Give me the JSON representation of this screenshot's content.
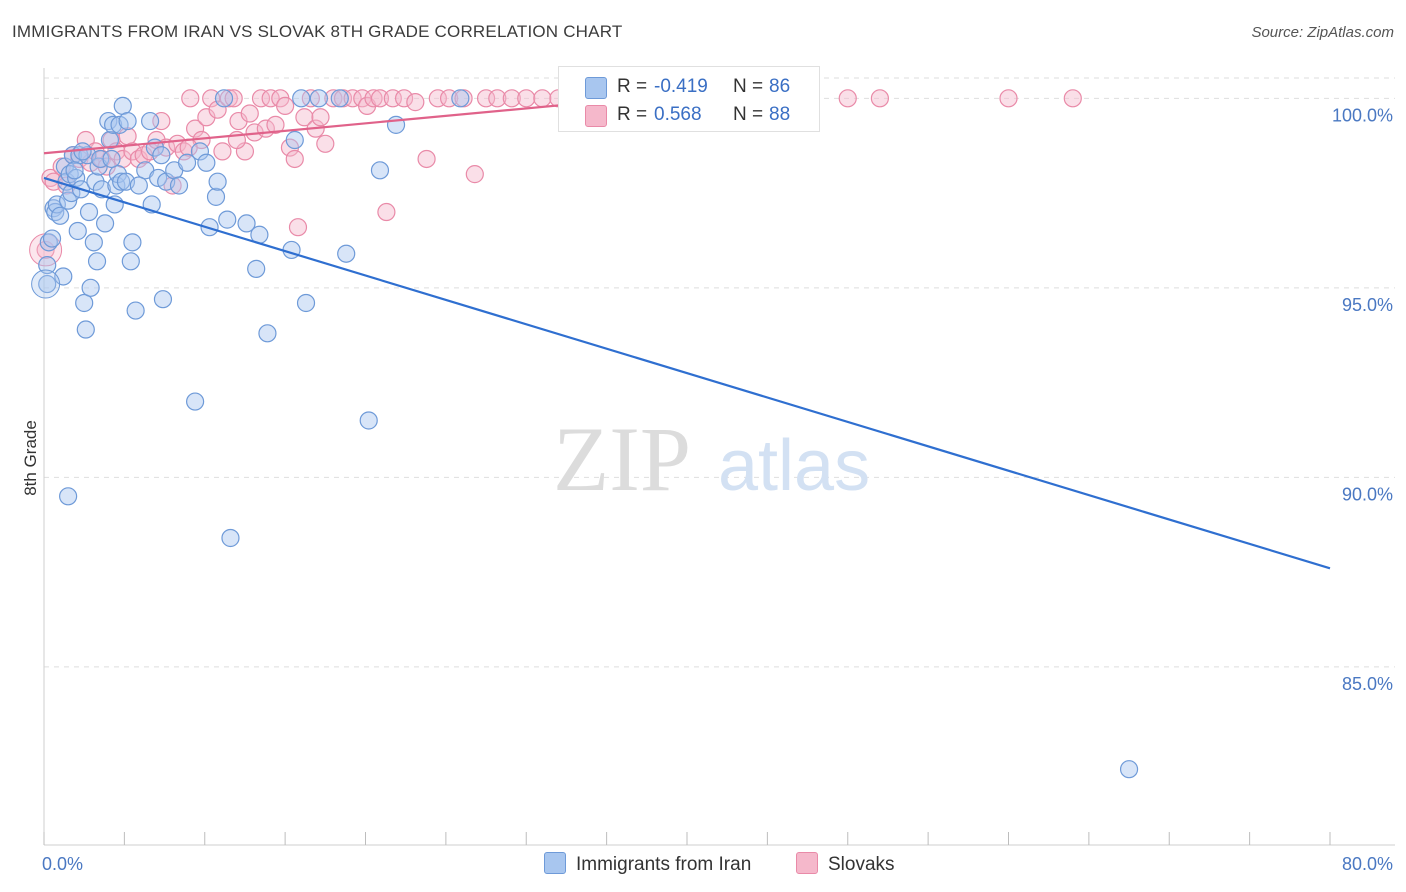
{
  "header": {
    "title": "IMMIGRANTS FROM IRAN VS SLOVAK 8TH GRADE CORRELATION CHART",
    "source": "Source: ZipAtlas.com"
  },
  "watermark": {
    "zip": "ZIP",
    "atlas": "atlas"
  },
  "legend": {
    "rows": [
      {
        "r_label": "R =",
        "r_value": "-0.419",
        "n_label": "N =",
        "n_value": "86",
        "color": "#a8c6ef"
      },
      {
        "r_label": "R =",
        "r_value": "0.568",
        "n_label": "N =",
        "n_value": "88",
        "color": "#f5b8cb"
      }
    ]
  },
  "bottom_legend": {
    "iran": "Immigrants from Iran",
    "slovaks": "Slovaks"
  },
  "chart_data": {
    "type": "scatter",
    "title": "IMMIGRANTS FROM IRAN VS SLOVAK 8TH GRADE CORRELATION CHART",
    "ylabel": "8th Grade",
    "xlabel": "",
    "xlim": [
      0,
      80
    ],
    "ylim": [
      80.3,
      100.8
    ],
    "x_tick_labels": [
      {
        "value": 0,
        "label": "0.0%"
      },
      {
        "value": 80,
        "label": "80.0%"
      }
    ],
    "y_ticks": [
      {
        "value": 100,
        "label": "100.0%"
      },
      {
        "value": 95,
        "label": "95.0%"
      },
      {
        "value": 90,
        "label": "90.0%"
      },
      {
        "value": 85,
        "label": "85.0%"
      }
    ],
    "grid": "horizontal dashed",
    "colors": {
      "iran_fill": "#a8c6ef",
      "iran_stroke": "#6e9ad8",
      "iran_line": "#2f6fd0",
      "slovak_fill": "#f5b8cb",
      "slovak_stroke": "#e98aa8",
      "slovak_line": "#e0628a",
      "tick_text": "#4a78c2"
    },
    "series": [
      {
        "name": "Immigrants from Iran",
        "trend": {
          "x": [
            0,
            80
          ],
          "y": [
            97.9,
            87.6
          ]
        },
        "points": [
          [
            0.2,
            95.1
          ],
          [
            0.2,
            95.6
          ],
          [
            0.3,
            96.2
          ],
          [
            0.5,
            96.3
          ],
          [
            0.6,
            97.1
          ],
          [
            0.7,
            97.0
          ],
          [
            0.8,
            97.2
          ],
          [
            1.0,
            96.9
          ],
          [
            1.2,
            95.3
          ],
          [
            1.3,
            98.2
          ],
          [
            1.4,
            97.8
          ],
          [
            1.5,
            97.3
          ],
          [
            1.6,
            98.0
          ],
          [
            1.7,
            97.5
          ],
          [
            1.8,
            98.5
          ],
          [
            2.0,
            97.9
          ],
          [
            2.1,
            96.5
          ],
          [
            2.2,
            98.5
          ],
          [
            2.3,
            97.6
          ],
          [
            2.5,
            94.6
          ],
          [
            2.6,
            93.9
          ],
          [
            2.7,
            98.5
          ],
          [
            2.8,
            97.0
          ],
          [
            2.9,
            95.0
          ],
          [
            3.1,
            96.2
          ],
          [
            3.2,
            97.8
          ],
          [
            3.3,
            95.7
          ],
          [
            3.4,
            98.2
          ],
          [
            3.5,
            98.4
          ],
          [
            3.6,
            97.6
          ],
          [
            3.8,
            96.7
          ],
          [
            4.0,
            99.4
          ],
          [
            4.1,
            98.9
          ],
          [
            4.3,
            99.3
          ],
          [
            4.4,
            97.2
          ],
          [
            4.5,
            97.7
          ],
          [
            4.6,
            98.0
          ],
          [
            4.7,
            99.3
          ],
          [
            4.8,
            97.8
          ],
          [
            4.9,
            99.8
          ],
          [
            5.1,
            97.8
          ],
          [
            5.2,
            99.4
          ],
          [
            5.4,
            95.7
          ],
          [
            5.5,
            96.2
          ],
          [
            5.7,
            94.4
          ],
          [
            6.3,
            98.1
          ],
          [
            6.6,
            99.4
          ],
          [
            6.7,
            97.2
          ],
          [
            6.9,
            98.7
          ],
          [
            7.1,
            97.9
          ],
          [
            7.3,
            98.5
          ],
          [
            7.4,
            94.7
          ],
          [
            7.6,
            97.8
          ],
          [
            8.1,
            98.1
          ],
          [
            8.4,
            97.7
          ],
          [
            9.4,
            92.0
          ],
          [
            9.7,
            98.6
          ],
          [
            10.1,
            98.3
          ],
          [
            10.3,
            96.6
          ],
          [
            10.7,
            97.4
          ],
          [
            10.8,
            97.8
          ],
          [
            11.2,
            100.0
          ],
          [
            11.4,
            96.8
          ],
          [
            11.6,
            88.4
          ],
          [
            12.6,
            96.7
          ],
          [
            13.2,
            95.5
          ],
          [
            13.4,
            96.4
          ],
          [
            13.9,
            93.8
          ],
          [
            15.4,
            96.0
          ],
          [
            15.6,
            98.9
          ],
          [
            16.0,
            100.0
          ],
          [
            16.3,
            94.6
          ],
          [
            17.1,
            100.0
          ],
          [
            18.4,
            100.0
          ],
          [
            18.8,
            95.9
          ],
          [
            20.2,
            91.5
          ],
          [
            20.9,
            98.1
          ],
          [
            21.9,
            99.3
          ],
          [
            25.9,
            100.0
          ],
          [
            1.5,
            89.5
          ],
          [
            67.5,
            82.3
          ],
          [
            4.2,
            98.4
          ],
          [
            2.4,
            98.6
          ],
          [
            5.9,
            97.7
          ],
          [
            8.9,
            98.3
          ],
          [
            1.9,
            98.1
          ]
        ]
      },
      {
        "name": "Slovaks",
        "trend": {
          "x": [
            0,
            38
          ],
          "y": [
            98.55,
            100.05
          ]
        },
        "points": [
          [
            0.1,
            96.0
          ],
          [
            0.4,
            97.9
          ],
          [
            0.6,
            97.8
          ],
          [
            1.1,
            98.2
          ],
          [
            1.4,
            97.7
          ],
          [
            1.8,
            98.5
          ],
          [
            2.2,
            98.4
          ],
          [
            2.6,
            98.9
          ],
          [
            2.9,
            98.3
          ],
          [
            3.2,
            98.6
          ],
          [
            3.6,
            98.4
          ],
          [
            3.9,
            98.2
          ],
          [
            4.2,
            98.9
          ],
          [
            4.5,
            98.6
          ],
          [
            4.9,
            98.4
          ],
          [
            5.2,
            99.0
          ],
          [
            5.5,
            98.6
          ],
          [
            5.9,
            98.4
          ],
          [
            6.2,
            98.5
          ],
          [
            6.6,
            98.6
          ],
          [
            7.0,
            98.9
          ],
          [
            7.3,
            99.4
          ],
          [
            7.6,
            98.7
          ],
          [
            8.0,
            97.7
          ],
          [
            8.3,
            98.8
          ],
          [
            8.7,
            98.6
          ],
          [
            9.1,
            100.0
          ],
          [
            9.4,
            99.2
          ],
          [
            9.8,
            98.9
          ],
          [
            10.1,
            99.5
          ],
          [
            10.4,
            100.0
          ],
          [
            10.8,
            99.7
          ],
          [
            11.1,
            98.6
          ],
          [
            11.5,
            100.0
          ],
          [
            11.8,
            100.0
          ],
          [
            12.1,
            99.4
          ],
          [
            12.5,
            98.6
          ],
          [
            12.8,
            99.6
          ],
          [
            13.1,
            99.1
          ],
          [
            13.5,
            100.0
          ],
          [
            13.8,
            99.2
          ],
          [
            14.1,
            100.0
          ],
          [
            14.4,
            99.3
          ],
          [
            14.7,
            100.0
          ],
          [
            15.0,
            99.8
          ],
          [
            15.3,
            98.7
          ],
          [
            15.6,
            98.4
          ],
          [
            15.8,
            96.6
          ],
          [
            16.2,
            99.5
          ],
          [
            16.6,
            100.0
          ],
          [
            16.9,
            99.2
          ],
          [
            17.2,
            99.5
          ],
          [
            17.5,
            98.8
          ],
          [
            18.0,
            100.0
          ],
          [
            18.6,
            100.0
          ],
          [
            19.2,
            100.0
          ],
          [
            19.8,
            100.0
          ],
          [
            20.1,
            99.8
          ],
          [
            20.5,
            100.0
          ],
          [
            20.9,
            100.0
          ],
          [
            21.3,
            97.0
          ],
          [
            21.7,
            100.0
          ],
          [
            22.4,
            100.0
          ],
          [
            23.1,
            99.9
          ],
          [
            23.8,
            98.4
          ],
          [
            24.5,
            100.0
          ],
          [
            25.2,
            100.0
          ],
          [
            26.1,
            100.0
          ],
          [
            26.8,
            98.0
          ],
          [
            27.5,
            100.0
          ],
          [
            28.2,
            100.0
          ],
          [
            29.1,
            100.0
          ],
          [
            30.0,
            100.0
          ],
          [
            31.0,
            100.0
          ],
          [
            32.0,
            100.0
          ],
          [
            34.0,
            100.0
          ],
          [
            35.5,
            100.0
          ],
          [
            37.0,
            100.0
          ],
          [
            39.5,
            100.0
          ],
          [
            42.0,
            100.0
          ],
          [
            45.0,
            100.0
          ],
          [
            47.5,
            100.0
          ],
          [
            50.0,
            100.0
          ],
          [
            52.0,
            100.0
          ],
          [
            60.0,
            100.0
          ],
          [
            64.0,
            100.0
          ],
          [
            9.0,
            98.7
          ],
          [
            12.0,
            98.9
          ]
        ]
      }
    ]
  }
}
